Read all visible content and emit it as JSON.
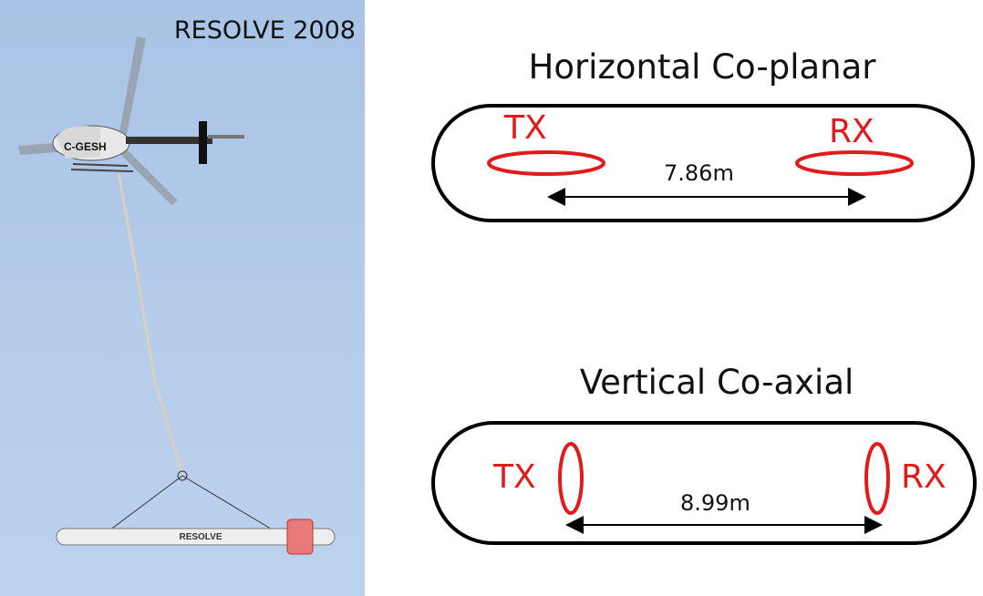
{
  "photo": {
    "caption": "RESOLVE 2008",
    "heli_reg": "C-GESH",
    "bird_text": "RESOLVE"
  },
  "diagrams": [
    {
      "title": "Horizontal Co-planar",
      "tx_label": "TX",
      "rx_label": "RX",
      "distance": "7.86m"
    },
    {
      "title": "Vertical Co-axial",
      "tx_label": "TX",
      "rx_label": "RX",
      "distance": "8.99m"
    }
  ],
  "colors": {
    "coil": "#e11b1b",
    "outline": "#000000",
    "sky": "#b4cbea"
  }
}
